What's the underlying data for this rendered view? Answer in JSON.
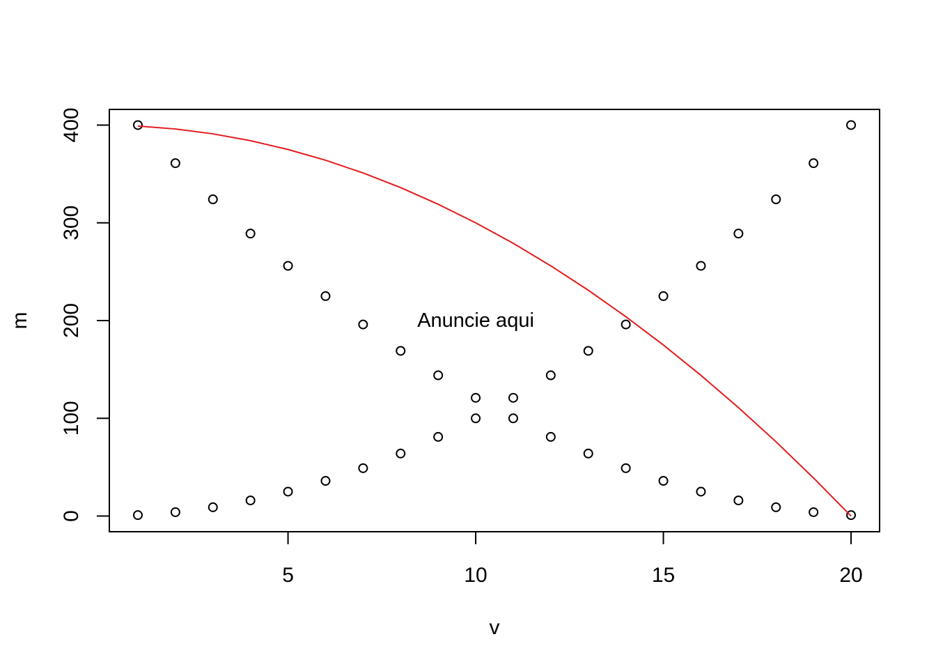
{
  "chart_data": {
    "type": "scatter",
    "title": "",
    "xlabel": "v",
    "ylabel": "m",
    "xlim": [
      0.24,
      20.76
    ],
    "ylim": [
      -16,
      416
    ],
    "x_ticks": [
      5,
      10,
      15,
      20
    ],
    "y_ticks": [
      0,
      100,
      200,
      300,
      400
    ],
    "grid": false,
    "legend": "none",
    "series": [
      {
        "kind": "points",
        "marker": "open-circle",
        "color": "#000000",
        "x": [
          1,
          2,
          3,
          4,
          5,
          6,
          7,
          8,
          9,
          10,
          11,
          12,
          13,
          14,
          15,
          16,
          17,
          18,
          19,
          20
        ],
        "y": [
          1,
          4,
          9,
          16,
          25,
          36,
          49,
          64,
          81,
          100,
          121,
          144,
          169,
          196,
          225,
          256,
          289,
          324,
          361,
          400
        ]
      },
      {
        "kind": "points",
        "marker": "open-circle",
        "color": "#000000",
        "x": [
          1,
          2,
          3,
          4,
          5,
          6,
          7,
          8,
          9,
          10,
          11,
          12,
          13,
          14,
          15,
          16,
          17,
          18,
          19,
          20
        ],
        "y": [
          400,
          361,
          324,
          289,
          256,
          225,
          196,
          169,
          144,
          121,
          100,
          81,
          64,
          49,
          36,
          25,
          16,
          9,
          4,
          1
        ]
      },
      {
        "kind": "line",
        "color": "#e41a1c",
        "x": [
          1,
          2,
          3,
          4,
          5,
          6,
          7,
          8,
          9,
          10,
          11,
          12,
          13,
          14,
          15,
          16,
          17,
          18,
          19,
          20
        ],
        "y": [
          399,
          396,
          391,
          384,
          375,
          364,
          351,
          336,
          319,
          300,
          279,
          256,
          231,
          204,
          175,
          144,
          111,
          76,
          39,
          0
        ]
      }
    ],
    "annotations": [
      {
        "text": "Anuncie aqui",
        "x": 10,
        "y": 200
      }
    ]
  }
}
